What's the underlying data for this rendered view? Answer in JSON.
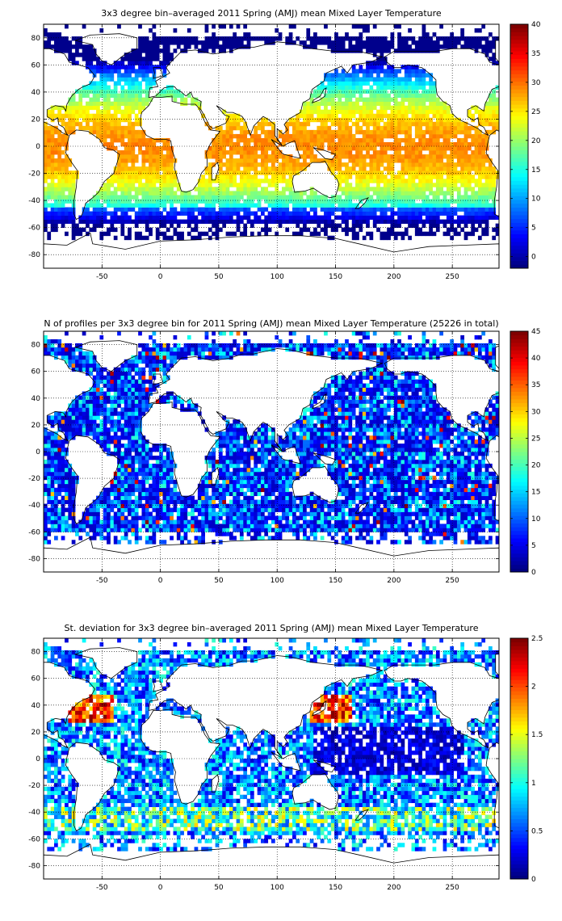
{
  "chart_data": [
    {
      "type": "heatmap",
      "title": "3x3 degree bin–averaged 2011 Spring (AMJ) mean Mixed Layer Temperature",
      "xlim": [
        -100,
        290
      ],
      "ylim": [
        -90,
        90
      ],
      "x_ticks": [
        -50,
        0,
        50,
        100,
        150,
        200,
        250
      ],
      "y_ticks": [
        -80,
        -60,
        -40,
        -20,
        0,
        20,
        40,
        60,
        80
      ],
      "bin_size_deg": 3,
      "grid": true,
      "colorbar": {
        "min": -2,
        "max": 40,
        "ticks": [
          0,
          5,
          10,
          15,
          20,
          25,
          30,
          35,
          40
        ],
        "colormap": "jet",
        "placement": "right"
      },
      "variable": "temperature",
      "coverage": "sparse"
    },
    {
      "type": "heatmap",
      "title": "N of profiles per 3x3 degree bin for 2011 Spring (AMJ) mean Mixed Layer Temperature  (25226 in total)",
      "xlim": [
        -100,
        290
      ],
      "ylim": [
        -90,
        90
      ],
      "x_ticks": [
        -50,
        0,
        50,
        100,
        150,
        200,
        250
      ],
      "y_ticks": [
        -80,
        -60,
        -40,
        -20,
        0,
        20,
        40,
        60,
        80
      ],
      "bin_size_deg": 3,
      "grid": true,
      "colorbar": {
        "min": 0,
        "max": 45,
        "ticks": [
          0,
          5,
          10,
          15,
          20,
          25,
          30,
          35,
          40,
          45
        ],
        "colormap": "jet",
        "placement": "right"
      },
      "variable": "count",
      "coverage": "dense"
    },
    {
      "type": "heatmap",
      "title": "St. deviation for 3x3 degree bin–averaged 2011 Spring (AMJ) mean Mixed Layer Temperature",
      "xlim": [
        -100,
        290
      ],
      "ylim": [
        -90,
        90
      ],
      "x_ticks": [
        -50,
        0,
        50,
        100,
        150,
        200,
        250
      ],
      "y_ticks": [
        -80,
        -60,
        -40,
        -20,
        0,
        20,
        40,
        60,
        80
      ],
      "bin_size_deg": 3,
      "grid": true,
      "colorbar": {
        "min": 0,
        "max": 2.5,
        "ticks": [
          0,
          0.5,
          1,
          1.5,
          2,
          2.5
        ],
        "colormap": "jet",
        "placement": "right"
      },
      "variable": "stdev",
      "coverage": "medium"
    }
  ]
}
